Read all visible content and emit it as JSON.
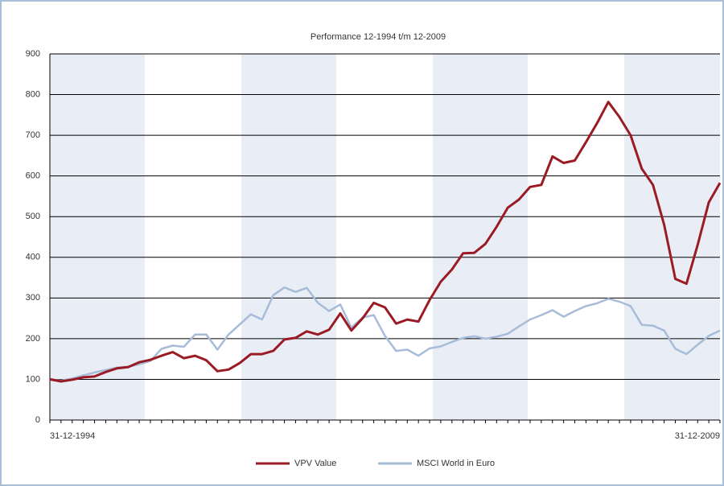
{
  "chart_data": {
    "type": "line",
    "title": "Performance 12-1994 t/m 12-2009",
    "categories": [
      "31-12-1994",
      null,
      null,
      null,
      null,
      null,
      null,
      null,
      null,
      null,
      null,
      null,
      null,
      null,
      null,
      null,
      null,
      null,
      null,
      null,
      null,
      null,
      null,
      null,
      null,
      null,
      null,
      null,
      null,
      null,
      null,
      null,
      null,
      null,
      null,
      null,
      null,
      null,
      null,
      null,
      null,
      null,
      null,
      null,
      null,
      null,
      null,
      null,
      null,
      null,
      null,
      null,
      null,
      null,
      null,
      null,
      null,
      null,
      null,
      null,
      "31-12-2009"
    ],
    "series": [
      {
        "name": "VPV Value",
        "color": "#9b1b24",
        "values": [
          100,
          95,
          99,
          105,
          107,
          118,
          127,
          130,
          142,
          148,
          158,
          167,
          152,
          158,
          147,
          120,
          124,
          140,
          162,
          162,
          170,
          198,
          202,
          218,
          210,
          222,
          262,
          220,
          250,
          288,
          277,
          237,
          247,
          242,
          295,
          340,
          370,
          410,
          411,
          433,
          475,
          522,
          542,
          573,
          578,
          648,
          632,
          638,
          683,
          730,
          782,
          745,
          700,
          618,
          578,
          480,
          347,
          335,
          430,
          535,
          583
        ]
      },
      {
        "name": "MSCI World in Euro",
        "color": "#a7bcd8",
        "values": [
          100,
          97,
          102,
          110,
          117,
          123,
          129,
          131,
          137,
          145,
          175,
          183,
          180,
          210,
          210,
          173,
          210,
          235,
          260,
          247,
          307,
          326,
          315,
          325,
          288,
          268,
          284,
          227,
          252,
          258,
          207,
          170,
          173,
          158,
          176,
          181,
          192,
          202,
          206,
          200,
          205,
          212,
          230,
          247,
          258,
          270,
          254,
          268,
          280,
          287,
          298,
          291,
          280,
          234,
          232,
          220,
          175,
          162,
          185,
          207,
          220
        ]
      }
    ],
    "ylim": [
      0,
      900
    ],
    "yticks": [
      0,
      100,
      200,
      300,
      400,
      500,
      600,
      700,
      800,
      900
    ],
    "grid": true
  }
}
